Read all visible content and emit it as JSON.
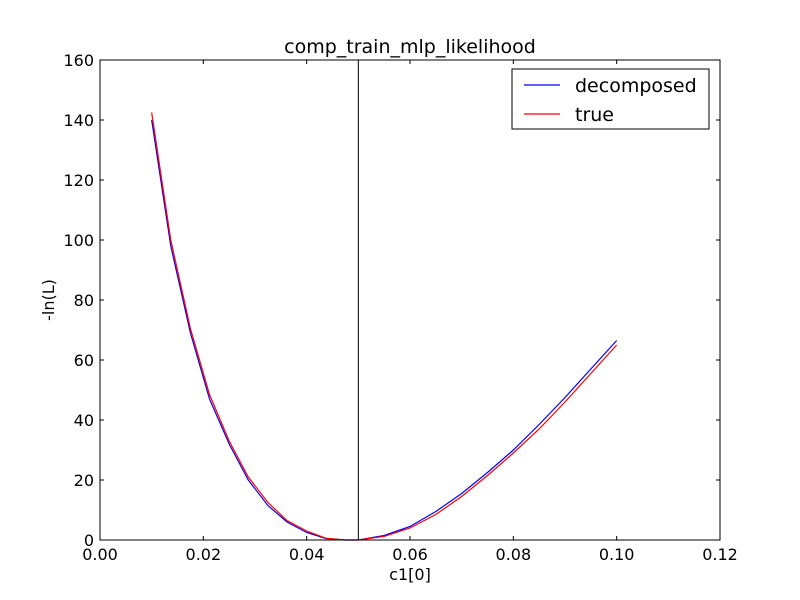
{
  "chart_data": {
    "type": "line",
    "title": "comp_train_mlp_likelihood",
    "xlabel": "c1[0]",
    "ylabel": "-ln(L)",
    "xlim": [
      0.0,
      0.12
    ],
    "ylim": [
      0,
      160
    ],
    "xticks": [
      "0.00",
      "0.02",
      "0.04",
      "0.06",
      "0.08",
      "0.10",
      "0.12"
    ],
    "yticks": [
      "0",
      "20",
      "40",
      "60",
      "80",
      "100",
      "120",
      "140",
      "160"
    ],
    "grid": false,
    "legend_position": "top-right",
    "vline_x": 0.05,
    "series": [
      {
        "name": "decomposed",
        "color": "#0000ff",
        "x": [
          0.01,
          0.0137,
          0.0175,
          0.0212,
          0.025,
          0.0287,
          0.0325,
          0.0362,
          0.04,
          0.0437,
          0.0475,
          0.05,
          0.055,
          0.06,
          0.065,
          0.07,
          0.075,
          0.08,
          0.085,
          0.09,
          0.095,
          0.1
        ],
        "y": [
          140.0,
          98.0,
          69.0,
          47.0,
          32.0,
          20.0,
          11.5,
          6.0,
          2.5,
          0.5,
          0.0,
          0.0,
          1.5,
          4.5,
          9.5,
          15.5,
          22.5,
          30.0,
          38.5,
          47.5,
          57.0,
          66.5
        ]
      },
      {
        "name": "true",
        "color": "#ff0000",
        "x": [
          0.01,
          0.0137,
          0.0175,
          0.0212,
          0.025,
          0.0287,
          0.0325,
          0.0362,
          0.04,
          0.0437,
          0.0475,
          0.05,
          0.055,
          0.06,
          0.065,
          0.07,
          0.075,
          0.08,
          0.085,
          0.09,
          0.095,
          0.1
        ],
        "y": [
          142.5,
          100.0,
          70.5,
          48.5,
          33.0,
          21.0,
          12.5,
          6.5,
          3.0,
          0.6,
          0.0,
          0.0,
          1.2,
          4.0,
          8.5,
          14.5,
          21.5,
          29.0,
          37.0,
          46.0,
          55.5,
          65.0
        ]
      }
    ]
  }
}
